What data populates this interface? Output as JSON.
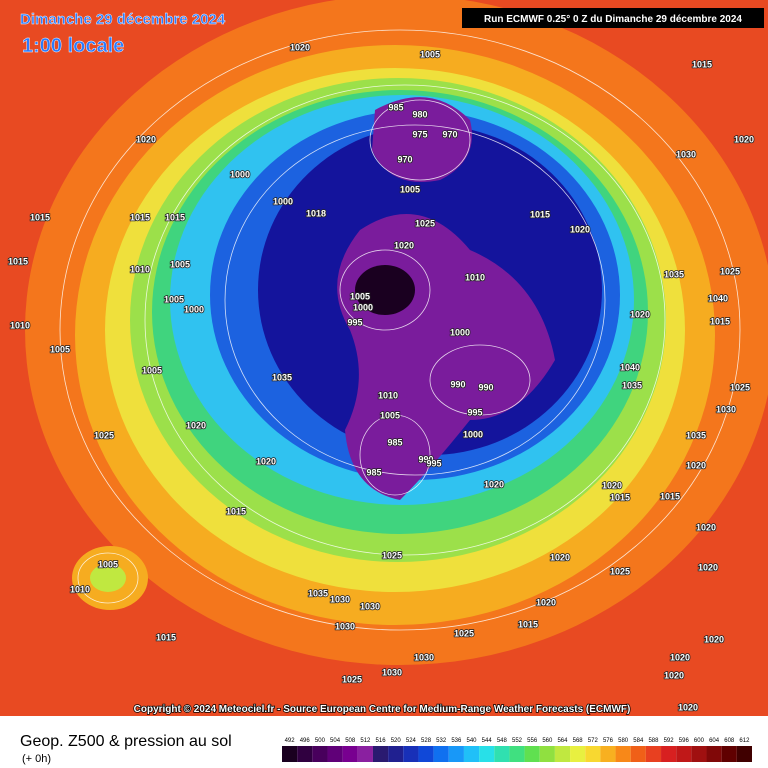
{
  "header": {
    "date": "Dimanche 29 décembre 2024",
    "time": "1:00 locale",
    "run": "Run ECMWF 0.25° 0 Z du Dimanche 29 décembre 2024"
  },
  "map": {
    "pressure_labels": [
      1020,
      1005,
      1015,
      1020,
      1000,
      985,
      980,
      975,
      970,
      970,
      1005,
      1000,
      1018,
      1015,
      1015,
      1015,
      1015,
      1020,
      1030,
      1020,
      1015,
      1010,
      1005,
      1025,
      1020,
      1010,
      1005,
      1000,
      995,
      1000,
      1005,
      1000,
      1010,
      1005,
      1005,
      990,
      990,
      995,
      1000,
      1010,
      1005,
      985,
      985,
      990,
      995,
      1025,
      1020,
      1020,
      1035,
      1015,
      1020,
      1020,
      1015,
      1020,
      1005,
      1010,
      1025,
      1020,
      1025,
      1035,
      1030,
      1030,
      1030,
      1020,
      1015,
      1025,
      1015,
      1030,
      1030,
      1025,
      1020,
      1020,
      1020,
      1020,
      1025,
      1015,
      1025,
      1030,
      1035,
      1015,
      1020,
      1020,
      1035,
      1040,
      1020,
      1035,
      1040
    ]
  },
  "copyright": "Copyright © 2024 Meteociel.fr - Source European Centre for Medium-Range Weather Forecasts (ECMWF)",
  "legend": {
    "title": "Geop. Z500 & pression au sol",
    "subtitle": "(+ 0h)",
    "ticks": [
      492,
      496,
      500,
      504,
      508,
      512,
      516,
      520,
      524,
      528,
      532,
      536,
      540,
      544,
      548,
      552,
      556,
      560,
      564,
      568,
      572,
      576,
      580,
      584,
      588,
      592,
      596,
      600,
      604,
      608,
      612
    ],
    "colors": [
      "#1a0020",
      "#300040",
      "#48005c",
      "#600078",
      "#780090",
      "#8a20a0",
      "#2a1a70",
      "#202090",
      "#1830b8",
      "#1048d8",
      "#1070f0",
      "#1898f8",
      "#20c0f8",
      "#28e0e8",
      "#30e0b0",
      "#40e080",
      "#60e050",
      "#90e040",
      "#c0e840",
      "#e8f040",
      "#f8d830",
      "#f8b020",
      "#f88818",
      "#f06018",
      "#e84020",
      "#d82020",
      "#c01818",
      "#a01010",
      "#800808",
      "#600000",
      "#400000"
    ]
  }
}
